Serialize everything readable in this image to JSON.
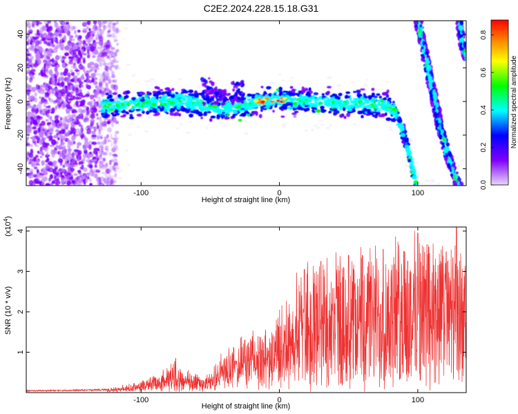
{
  "title": "C2E2.2024.228.15.18.G31",
  "chart_data": [
    {
      "type": "heatmap",
      "xlabel": "Height of straight line (km)",
      "ylabel": "Frequency (Hz)",
      "xlim": [
        -183,
        135
      ],
      "ylim": [
        -50,
        48
      ],
      "x_ticks": [
        -100,
        0,
        100
      ],
      "x_tick_labels": [
        "-100",
        "0",
        "100"
      ],
      "y_ticks": [
        -40,
        -20,
        0,
        20,
        40
      ],
      "y_tick_labels": [
        "-40",
        "-20",
        "0",
        "20",
        "40"
      ],
      "grid": false,
      "colorbar": {
        "label": "Normalized spectral amplitude",
        "range": [
          0.0,
          0.88
        ],
        "ticks": [
          0.0,
          0.2,
          0.4,
          0.6,
          0.8
        ],
        "tick_labels": [
          "0.0",
          "0.2",
          "0.4",
          "0.6",
          "0.8"
        ],
        "colors": [
          "#e8d8ff",
          "#c080ff",
          "#7f00ff",
          "#0000ff",
          "#00ffff",
          "#00ff00",
          "#ffff00",
          "#ff8000",
          "#ff0000"
        ]
      },
      "features": {
        "noise_region": {
          "x": [
            -183,
            -123
          ],
          "frequency": [
            -50,
            48
          ]
        },
        "main_track": [
          [
            -128,
            -3
          ],
          [
            -110,
            -2
          ],
          [
            -90,
            -1
          ],
          [
            -70,
            0
          ],
          [
            -55,
            -2
          ],
          [
            -45,
            -4
          ],
          [
            -30,
            -3
          ],
          [
            -15,
            0
          ],
          [
            0,
            1
          ],
          [
            20,
            0
          ],
          [
            40,
            -1
          ],
          [
            60,
            -1
          ],
          [
            75,
            -2
          ],
          [
            83,
            -5
          ],
          [
            90,
            -20
          ],
          [
            95,
            -35
          ],
          [
            99,
            -50
          ]
        ],
        "hot_spots": [
          [
            -15,
            0
          ],
          [
            -8,
            1
          ],
          [
            0,
            1
          ]
        ],
        "bursts": [
          [
            -52,
            12
          ],
          [
            -30,
            10
          ],
          [
            -43,
            6
          ]
        ],
        "streak_1": [
          [
            100,
            48
          ],
          [
            106,
            25
          ],
          [
            111,
            5
          ],
          [
            116,
            -15
          ],
          [
            121,
            -30
          ],
          [
            127,
            -45
          ],
          [
            130,
            -50
          ]
        ],
        "streak_2": [
          [
            130,
            48
          ],
          [
            132,
            35
          ],
          [
            135,
            25
          ]
        ]
      }
    },
    {
      "type": "line",
      "xlabel": "Height of straight line (km)",
      "ylabel": "SNR (10 * v/v)",
      "y_multiplier": "(x10",
      "y_multiplier_exp": "4",
      "y_multiplier_close": ")",
      "xlim": [
        -183,
        135
      ],
      "ylim": [
        0,
        4.1
      ],
      "x_ticks": [
        -100,
        0,
        100
      ],
      "x_tick_labels": [
        "-100",
        "0",
        "100"
      ],
      "y_ticks": [
        1,
        2,
        3,
        4
      ],
      "y_tick_labels": [
        "1",
        "2",
        "3",
        "4"
      ],
      "grid": false,
      "series": [
        {
          "color": "#ee3333",
          "envelope": {
            "x": [
              -183,
              -140,
              -125,
              -110,
              -100,
              -90,
              -80,
              -75,
              -70,
              -60,
              -50,
              -45,
              -40,
              -35,
              -30,
              -25,
              -20,
              -15,
              -10,
              -5,
              0,
              5,
              10,
              15,
              20,
              25,
              30,
              35,
              40,
              50,
              60,
              70,
              80,
              90,
              100,
              110,
              120,
              130,
              135
            ],
            "y": [
              0.06,
              0.08,
              0.1,
              0.15,
              0.25,
              0.4,
              0.6,
              0.75,
              0.5,
              0.45,
              0.4,
              0.65,
              0.9,
              1.0,
              1.1,
              1.2,
              1.45,
              1.4,
              1.35,
              1.5,
              1.95,
              2.1,
              2.3,
              2.8,
              3.0,
              3.2,
              3.3,
              3.25,
              3.3,
              3.35,
              3.4,
              3.5,
              3.6,
              3.6,
              3.75,
              3.7,
              3.6,
              3.4,
              3.2
            ]
          },
          "baseline": {
            "x": [
              -183,
              -140,
              -125,
              -110,
              -100,
              -90,
              -80,
              -70,
              -60,
              -50,
              -40,
              -30,
              -20,
              -10,
              0,
              10,
              20,
              30,
              40,
              60,
              80,
              100,
              120,
              135
            ],
            "y": [
              0.03,
              0.04,
              0.05,
              0.07,
              0.1,
              0.15,
              0.2,
              0.2,
              0.18,
              0.15,
              0.3,
              0.4,
              0.45,
              0.5,
              0.6,
              0.7,
              0.5,
              0.5,
              0.5,
              0.5,
              0.5,
              0.5,
              0.5,
              0.5
            ]
          },
          "peaks": [
            [
              -75,
              0.85
            ],
            [
              -33,
              1.1
            ],
            [
              -25,
              1.3
            ],
            [
              15,
              2.0
            ],
            [
              18,
              3.05
            ],
            [
              30,
              3.25
            ],
            [
              50,
              3.4
            ],
            [
              60,
              3.4
            ],
            [
              75,
              3.55
            ],
            [
              90,
              3.5
            ],
            [
              100,
              3.95
            ],
            [
              108,
              3.6
            ],
            [
              120,
              3.2
            ],
            [
              128,
              4.1
            ]
          ]
        }
      ]
    }
  ]
}
